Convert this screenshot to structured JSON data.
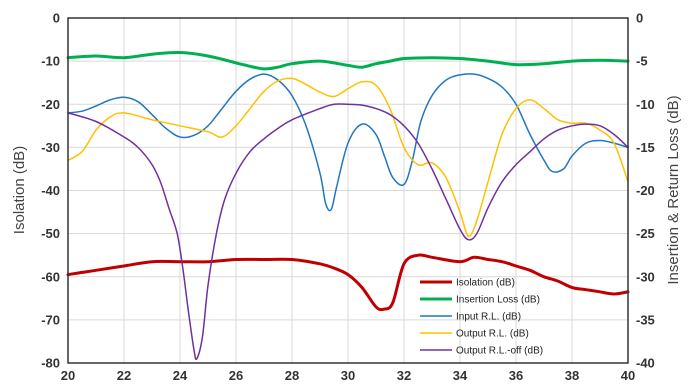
{
  "chart_data": {
    "type": "line",
    "xlabel": "",
    "ylabel": "Isolation (dB)",
    "y2label": "Insertion & Return Loss (dB)",
    "xlim": [
      20,
      40
    ],
    "ylim": [
      -80,
      0
    ],
    "y2lim": [
      -40,
      0
    ],
    "x_ticks": [
      "20",
      "22",
      "24",
      "26",
      "28",
      "30",
      "32",
      "34",
      "36",
      "38",
      "40"
    ],
    "y_ticks": [
      "0",
      "-10",
      "-20",
      "-30",
      "-40",
      "-50",
      "-60",
      "-70",
      "-80"
    ],
    "y2_ticks": [
      "0",
      "-5",
      "-10",
      "-15",
      "-20",
      "-25",
      "-30",
      "-35",
      "-40"
    ],
    "grid": true,
    "legend_position": "bottom-right",
    "series": [
      {
        "name": "Isolation (dB)",
        "color": "#c00000",
        "axis": "left",
        "width": 3,
        "x": [
          20,
          20.5,
          21,
          22,
          23,
          24,
          25,
          26,
          27,
          28,
          29,
          29.5,
          30,
          30.5,
          31,
          31.3,
          31.6,
          32,
          32.5,
          33,
          34,
          34.5,
          35,
          35.5,
          36,
          36.5,
          37,
          37.5,
          38,
          38.5,
          39,
          39.5,
          40
        ],
        "y": [
          -59.5,
          -59,
          -58.5,
          -57.5,
          -56.5,
          -56.5,
          -56.5,
          -56,
          -56,
          -56,
          -57,
          -58,
          -59.5,
          -62.5,
          -67,
          -67.5,
          -66,
          -57,
          -55,
          -55.5,
          -56.5,
          -55.5,
          -56,
          -56.5,
          -57.5,
          -58.5,
          -60,
          -61,
          -62.5,
          -63,
          -63.5,
          -64,
          -63.5
        ]
      },
      {
        "name": "Insertion Loss (dB)",
        "color": "#00b050",
        "axis": "right",
        "width": 3,
        "x": [
          20,
          21,
          22,
          23,
          24,
          25,
          26,
          26.5,
          27,
          27.5,
          28,
          29,
          30,
          30.5,
          31,
          31.5,
          32,
          33,
          34,
          35,
          36,
          37,
          38,
          39,
          40
        ],
        "y": [
          -4.6,
          -4.4,
          -4.6,
          -4.2,
          -4.0,
          -4.4,
          -5.2,
          -5.6,
          -5.9,
          -5.7,
          -5.3,
          -5.0,
          -5.5,
          -5.7,
          -5.3,
          -5.0,
          -4.7,
          -4.6,
          -4.7,
          -5.0,
          -5.4,
          -5.3,
          -5.0,
          -4.9,
          -5.0
        ]
      },
      {
        "name": "Input R.L. (dB)",
        "color": "#1f77c0",
        "axis": "right",
        "width": 1.5,
        "x": [
          20,
          20.5,
          21,
          21.5,
          22,
          22.5,
          23,
          23.5,
          24,
          24.5,
          25,
          25.5,
          26,
          26.5,
          27,
          27.5,
          28,
          28.5,
          29,
          29.2,
          29.4,
          29.6,
          30,
          30.5,
          31,
          31.3,
          31.6,
          32,
          32.3,
          32.6,
          33,
          33.5,
          34,
          34.5,
          35,
          35.5,
          36,
          36.5,
          37,
          37.3,
          37.7,
          38,
          38.5,
          39,
          39.5,
          40
        ],
        "y": [
          -11,
          -10.8,
          -10.2,
          -9.5,
          -9.2,
          -9.7,
          -11.2,
          -12.8,
          -13.8,
          -13.6,
          -12.5,
          -10.5,
          -8.5,
          -7.1,
          -6.5,
          -7.2,
          -9.0,
          -12.5,
          -18.0,
          -21.5,
          -22.2,
          -19.5,
          -14.5,
          -12.3,
          -13.5,
          -16.0,
          -18.5,
          -19.3,
          -16.5,
          -12.0,
          -9.0,
          -7.2,
          -6.6,
          -6.5,
          -7.0,
          -8.0,
          -10.0,
          -13.5,
          -16.5,
          -17.8,
          -17.5,
          -16.0,
          -14.5,
          -14.2,
          -14.5,
          -15.0
        ]
      },
      {
        "name": "Output R.L. (dB)",
        "color": "#ffc000",
        "axis": "right",
        "width": 1.5,
        "x": [
          20,
          20.5,
          21,
          21.5,
          22,
          23,
          24,
          25,
          25.5,
          26,
          26.5,
          27,
          27.5,
          28,
          28.5,
          29,
          29.5,
          30,
          30.5,
          31,
          31.5,
          32,
          32.5,
          33,
          33.5,
          34,
          34.3,
          34.6,
          35,
          35.5,
          36,
          36.5,
          37,
          37.5,
          38,
          38.5,
          39,
          39.5,
          40
        ],
        "y": [
          -16.5,
          -15.5,
          -13.0,
          -11.5,
          -11.0,
          -11.8,
          -12.5,
          -13.2,
          -13.8,
          -12.5,
          -10.5,
          -8.5,
          -7.3,
          -7.0,
          -7.7,
          -8.6,
          -9.1,
          -8.2,
          -7.4,
          -7.8,
          -10.5,
          -15.0,
          -17.0,
          -16.8,
          -18.5,
          -22.5,
          -25.3,
          -23.5,
          -19.0,
          -13.5,
          -10.5,
          -9.5,
          -10.5,
          -11.8,
          -12.2,
          -12.2,
          -13.0,
          -14.5,
          -19.0
        ]
      },
      {
        "name": "Output R.L.-off (dB)",
        "color": "#7030a0",
        "axis": "right",
        "width": 1.5,
        "x": [
          20,
          21,
          22,
          22.5,
          23,
          23.3,
          23.6,
          23.9,
          24.1,
          24.3,
          24.5,
          24.6,
          24.8,
          25,
          25.3,
          25.6,
          26,
          26.5,
          27,
          27.5,
          28,
          29,
          29.5,
          30,
          30.5,
          31,
          31.5,
          32,
          32.5,
          33,
          33.5,
          34,
          34.3,
          34.6,
          35,
          35.5,
          36,
          36.5,
          37,
          37.5,
          38,
          38.5,
          39,
          39.5,
          40
        ],
        "y": [
          -11,
          -12.0,
          -13.8,
          -15.0,
          -17.0,
          -19.0,
          -22.0,
          -25.0,
          -29.0,
          -34.0,
          -38.5,
          -39.5,
          -37.0,
          -31.0,
          -25.0,
          -21.0,
          -18.0,
          -15.5,
          -14.0,
          -12.8,
          -11.8,
          -10.5,
          -10.0,
          -10.0,
          -10.1,
          -10.5,
          -11.2,
          -12.5,
          -14.5,
          -17.5,
          -21.0,
          -24.5,
          -25.7,
          -25.0,
          -22.0,
          -19.0,
          -17.0,
          -15.5,
          -14.0,
          -13.0,
          -12.5,
          -12.3,
          -12.5,
          -13.5,
          -15.0
        ]
      }
    ]
  }
}
